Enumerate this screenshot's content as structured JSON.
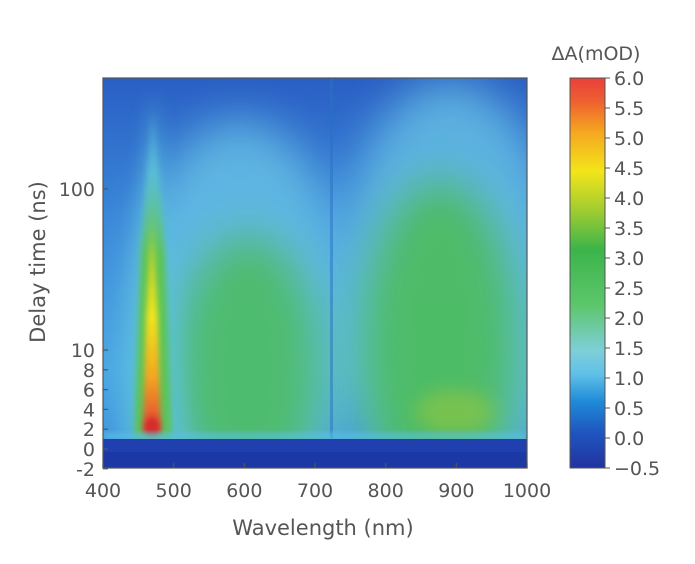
{
  "chart_data": {
    "type": "heatmap",
    "title": "",
    "xlabel": "Wavelength (nm)",
    "ylabel": "Delay time (ns)",
    "xlim": [
      400,
      1000
    ],
    "x_ticks": [
      400,
      500,
      600,
      700,
      800,
      900,
      1000
    ],
    "y_axis_scale": "linear near zero, logarithmic above ~10 ns",
    "y_ticks": [
      -2,
      0,
      2,
      4,
      6,
      8,
      10,
      100
    ],
    "colorbar": {
      "label": "ΔA(mOD)",
      "min": -0.5,
      "max": 6.0,
      "ticks": [
        "6.0",
        "5.5",
        "5.0",
        "4.5",
        "4.0",
        "3.5",
        "3.0",
        "2.5",
        "2.0",
        "1.5",
        "1.0",
        "0.5",
        "0.0",
        "−0.5"
      ],
      "colormap": [
        "#2233a0",
        "#1f6fd0",
        "#5fc0e8",
        "#5cc66a",
        "#3cb44a",
        "#a0cc30",
        "#f2e51a",
        "#f5a820",
        "#e8403a"
      ]
    },
    "features": [
      {
        "name": "narrow band",
        "center_nm": 467,
        "peak_dA_mOD": 6.0,
        "peak_delay_ns": 2,
        "extends_to_delay_ns": 300
      },
      {
        "name": "broad band",
        "range_nm": [
          540,
          680
        ],
        "level_dA_mOD": 3.5
      },
      {
        "name": "broad band",
        "range_nm": [
          780,
          960
        ],
        "level_dA_mOD": 3.7
      },
      {
        "name": "rise at time zero",
        "delay_ns": 1,
        "baseline_dA_mOD": -0.3
      }
    ]
  }
}
